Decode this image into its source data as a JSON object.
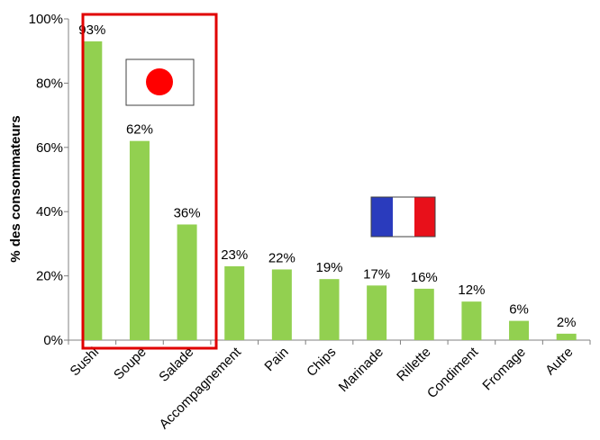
{
  "chart_data": {
    "type": "bar",
    "categories": [
      "Sushi",
      "Soupe",
      "Salade",
      "Accompagnement",
      "Pain",
      "Chips",
      "Marinade",
      "Rillette",
      "Condiment",
      "Fromage",
      "Autre"
    ],
    "values": [
      93,
      62,
      36,
      23,
      22,
      19,
      17,
      16,
      12,
      6,
      2
    ],
    "data_labels": [
      "93%",
      "62%",
      "36%",
      "23%",
      "22%",
      "19%",
      "17%",
      "16%",
      "12%",
      "6%",
      "2%"
    ],
    "ylabel": "% des consommateurs",
    "xlabel": "",
    "title": "",
    "ylim": [
      0,
      100
    ],
    "yticks": [
      "0%",
      "20%",
      "40%",
      "60%",
      "80%",
      "100%"
    ],
    "grid": false,
    "legend": "none",
    "highlight_group": [
      "Sushi",
      "Soupe",
      "Salade"
    ]
  },
  "colors": {
    "bar": "#92d050",
    "highlight_box": "#e00000",
    "axis": "#808080",
    "japan_sun": "#ff0000",
    "france_blue": "#2a3bbd",
    "france_white": "#ffffff",
    "france_red": "#e8101a"
  },
  "icons": {
    "japan_flag": "japan-flag-icon",
    "france_flag": "france-flag-icon"
  }
}
